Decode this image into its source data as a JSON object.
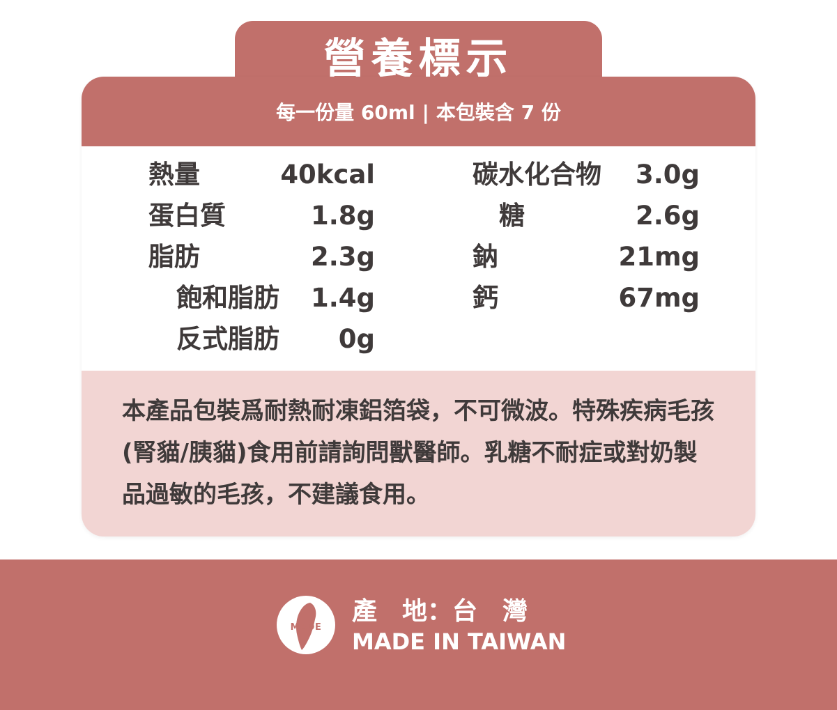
{
  "title": "營養標示",
  "serving": {
    "per_serving": "每一份量 60ml",
    "separator": "|",
    "servings_per_package": "本包裝含 7 份"
  },
  "nutrition_left": [
    {
      "label": "熱量",
      "value": "40kcal"
    },
    {
      "label": "蛋白質",
      "value": "1.8g"
    },
    {
      "label": "脂肪",
      "value": "2.3g"
    },
    {
      "label": "飽和脂肪",
      "value": "1.4g"
    },
    {
      "label": "反式脂肪",
      "value": "0g"
    }
  ],
  "nutrition_right": [
    {
      "label": "碳水化合物",
      "value": "3.0g"
    },
    {
      "label": "糖",
      "value": "2.6g"
    },
    {
      "label": "鈉",
      "value": "21mg"
    },
    {
      "label": "鈣",
      "value": "67mg"
    }
  ],
  "note": "本產品包裝爲耐熱耐凍鋁箔袋，不可微波。特殊疾病毛孩(腎貓/胰貓)食用前請詢問獸醫師。乳糖不耐症或對奶製品過敏的毛孩，不建議食用。",
  "origin": {
    "badge_text": "MADE",
    "label_zh": "產　地：台　灣",
    "label_en": "MADE IN TAIWAN"
  },
  "colors": {
    "primary": "#c1706b",
    "note_background": "#f2d5d3",
    "text": "#3f3a3a"
  }
}
